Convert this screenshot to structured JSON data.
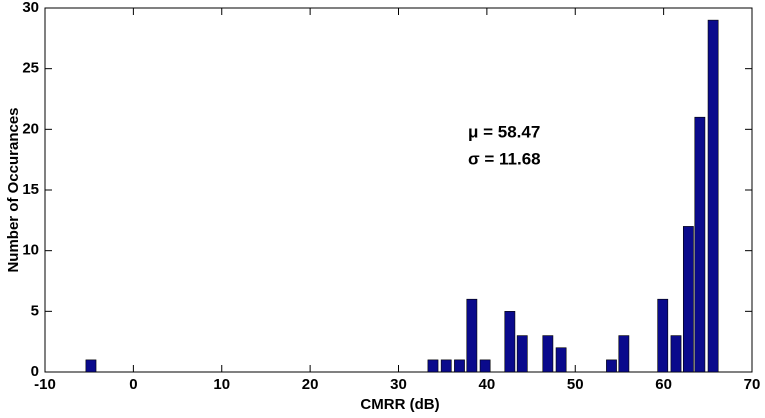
{
  "chart_data": {
    "type": "bar",
    "x": [
      -4.8,
      33.9,
      35.4,
      36.9,
      38.3,
      39.8,
      42.6,
      44.0,
      46.9,
      48.4,
      54.1,
      55.5,
      59.9,
      61.4,
      62.8,
      64.1,
      65.6
    ],
    "values": [
      1,
      1,
      1,
      1,
      6,
      1,
      5,
      3,
      3,
      2,
      1,
      3,
      6,
      3,
      12,
      21,
      29
    ],
    "color": "#0a0a8c",
    "xlabel": "CMRR (dB)",
    "ylabel": "Number of Occurances",
    "xlim": [
      -10,
      70
    ],
    "xticks": [
      -10,
      0,
      10,
      20,
      30,
      40,
      50,
      60,
      70
    ],
    "ylim": [
      0,
      30
    ],
    "yticks": [
      0,
      5,
      10,
      15,
      20,
      25,
      30
    ],
    "annotations": [
      "μ = 58.47",
      "σ = 11.68"
    ]
  }
}
